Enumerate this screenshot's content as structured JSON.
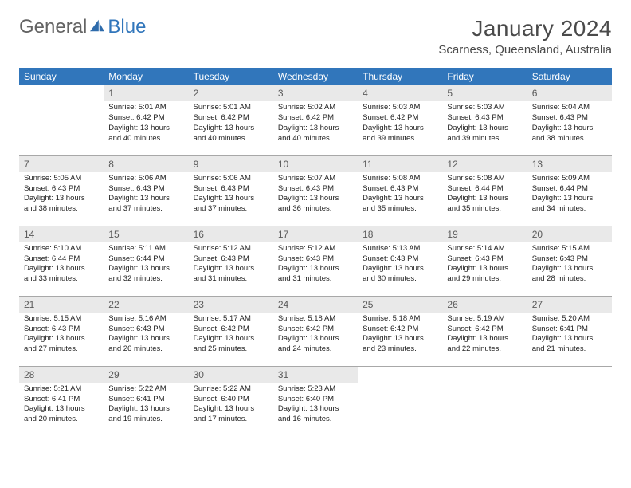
{
  "logo": {
    "text_gray": "General",
    "text_blue": "Blue"
  },
  "header": {
    "title": "January 2024",
    "location": "Scarness, Queensland, Australia"
  },
  "colors": {
    "header_bg": "#3176bb",
    "header_fg": "#ffffff",
    "daynum_bg": "#e9e9e9",
    "rule": "#a8a8a8"
  },
  "weekdays": [
    "Sunday",
    "Monday",
    "Tuesday",
    "Wednesday",
    "Thursday",
    "Friday",
    "Saturday"
  ],
  "weeks": [
    [
      {
        "empty": true
      },
      {
        "n": "1",
        "sr": "Sunrise: 5:01 AM",
        "ss": "Sunset: 6:42 PM",
        "d1": "Daylight: 13 hours",
        "d2": "and 40 minutes."
      },
      {
        "n": "2",
        "sr": "Sunrise: 5:01 AM",
        "ss": "Sunset: 6:42 PM",
        "d1": "Daylight: 13 hours",
        "d2": "and 40 minutes."
      },
      {
        "n": "3",
        "sr": "Sunrise: 5:02 AM",
        "ss": "Sunset: 6:42 PM",
        "d1": "Daylight: 13 hours",
        "d2": "and 40 minutes."
      },
      {
        "n": "4",
        "sr": "Sunrise: 5:03 AM",
        "ss": "Sunset: 6:42 PM",
        "d1": "Daylight: 13 hours",
        "d2": "and 39 minutes."
      },
      {
        "n": "5",
        "sr": "Sunrise: 5:03 AM",
        "ss": "Sunset: 6:43 PM",
        "d1": "Daylight: 13 hours",
        "d2": "and 39 minutes."
      },
      {
        "n": "6",
        "sr": "Sunrise: 5:04 AM",
        "ss": "Sunset: 6:43 PM",
        "d1": "Daylight: 13 hours",
        "d2": "and 38 minutes."
      }
    ],
    [
      {
        "n": "7",
        "sr": "Sunrise: 5:05 AM",
        "ss": "Sunset: 6:43 PM",
        "d1": "Daylight: 13 hours",
        "d2": "and 38 minutes."
      },
      {
        "n": "8",
        "sr": "Sunrise: 5:06 AM",
        "ss": "Sunset: 6:43 PM",
        "d1": "Daylight: 13 hours",
        "d2": "and 37 minutes."
      },
      {
        "n": "9",
        "sr": "Sunrise: 5:06 AM",
        "ss": "Sunset: 6:43 PM",
        "d1": "Daylight: 13 hours",
        "d2": "and 37 minutes."
      },
      {
        "n": "10",
        "sr": "Sunrise: 5:07 AM",
        "ss": "Sunset: 6:43 PM",
        "d1": "Daylight: 13 hours",
        "d2": "and 36 minutes."
      },
      {
        "n": "11",
        "sr": "Sunrise: 5:08 AM",
        "ss": "Sunset: 6:43 PM",
        "d1": "Daylight: 13 hours",
        "d2": "and 35 minutes."
      },
      {
        "n": "12",
        "sr": "Sunrise: 5:08 AM",
        "ss": "Sunset: 6:44 PM",
        "d1": "Daylight: 13 hours",
        "d2": "and 35 minutes."
      },
      {
        "n": "13",
        "sr": "Sunrise: 5:09 AM",
        "ss": "Sunset: 6:44 PM",
        "d1": "Daylight: 13 hours",
        "d2": "and 34 minutes."
      }
    ],
    [
      {
        "n": "14",
        "sr": "Sunrise: 5:10 AM",
        "ss": "Sunset: 6:44 PM",
        "d1": "Daylight: 13 hours",
        "d2": "and 33 minutes."
      },
      {
        "n": "15",
        "sr": "Sunrise: 5:11 AM",
        "ss": "Sunset: 6:44 PM",
        "d1": "Daylight: 13 hours",
        "d2": "and 32 minutes."
      },
      {
        "n": "16",
        "sr": "Sunrise: 5:12 AM",
        "ss": "Sunset: 6:43 PM",
        "d1": "Daylight: 13 hours",
        "d2": "and 31 minutes."
      },
      {
        "n": "17",
        "sr": "Sunrise: 5:12 AM",
        "ss": "Sunset: 6:43 PM",
        "d1": "Daylight: 13 hours",
        "d2": "and 31 minutes."
      },
      {
        "n": "18",
        "sr": "Sunrise: 5:13 AM",
        "ss": "Sunset: 6:43 PM",
        "d1": "Daylight: 13 hours",
        "d2": "and 30 minutes."
      },
      {
        "n": "19",
        "sr": "Sunrise: 5:14 AM",
        "ss": "Sunset: 6:43 PM",
        "d1": "Daylight: 13 hours",
        "d2": "and 29 minutes."
      },
      {
        "n": "20",
        "sr": "Sunrise: 5:15 AM",
        "ss": "Sunset: 6:43 PM",
        "d1": "Daylight: 13 hours",
        "d2": "and 28 minutes."
      }
    ],
    [
      {
        "n": "21",
        "sr": "Sunrise: 5:15 AM",
        "ss": "Sunset: 6:43 PM",
        "d1": "Daylight: 13 hours",
        "d2": "and 27 minutes."
      },
      {
        "n": "22",
        "sr": "Sunrise: 5:16 AM",
        "ss": "Sunset: 6:43 PM",
        "d1": "Daylight: 13 hours",
        "d2": "and 26 minutes."
      },
      {
        "n": "23",
        "sr": "Sunrise: 5:17 AM",
        "ss": "Sunset: 6:42 PM",
        "d1": "Daylight: 13 hours",
        "d2": "and 25 minutes."
      },
      {
        "n": "24",
        "sr": "Sunrise: 5:18 AM",
        "ss": "Sunset: 6:42 PM",
        "d1": "Daylight: 13 hours",
        "d2": "and 24 minutes."
      },
      {
        "n": "25",
        "sr": "Sunrise: 5:18 AM",
        "ss": "Sunset: 6:42 PM",
        "d1": "Daylight: 13 hours",
        "d2": "and 23 minutes."
      },
      {
        "n": "26",
        "sr": "Sunrise: 5:19 AM",
        "ss": "Sunset: 6:42 PM",
        "d1": "Daylight: 13 hours",
        "d2": "and 22 minutes."
      },
      {
        "n": "27",
        "sr": "Sunrise: 5:20 AM",
        "ss": "Sunset: 6:41 PM",
        "d1": "Daylight: 13 hours",
        "d2": "and 21 minutes."
      }
    ],
    [
      {
        "n": "28",
        "sr": "Sunrise: 5:21 AM",
        "ss": "Sunset: 6:41 PM",
        "d1": "Daylight: 13 hours",
        "d2": "and 20 minutes."
      },
      {
        "n": "29",
        "sr": "Sunrise: 5:22 AM",
        "ss": "Sunset: 6:41 PM",
        "d1": "Daylight: 13 hours",
        "d2": "and 19 minutes."
      },
      {
        "n": "30",
        "sr": "Sunrise: 5:22 AM",
        "ss": "Sunset: 6:40 PM",
        "d1": "Daylight: 13 hours",
        "d2": "and 17 minutes."
      },
      {
        "n": "31",
        "sr": "Sunrise: 5:23 AM",
        "ss": "Sunset: 6:40 PM",
        "d1": "Daylight: 13 hours",
        "d2": "and 16 minutes."
      },
      {
        "empty": true
      },
      {
        "empty": true
      },
      {
        "empty": true
      }
    ]
  ]
}
